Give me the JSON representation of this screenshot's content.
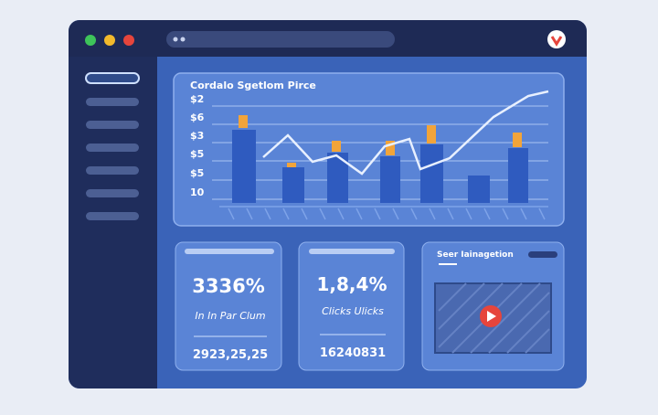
{
  "chart": {
    "title": "Cordalo Sgetlom Pirce",
    "y_labels": [
      "$2",
      "$6",
      "$3",
      "$5",
      "$5",
      "10"
    ]
  },
  "cards": [
    {
      "value": "3336%",
      "label": "In In Par Clum",
      "footer": "2923,25,25"
    },
    {
      "value": "1,8,4%",
      "label": "Clicks Ulicks",
      "footer": "16240831"
    }
  ],
  "media": {
    "title": "Seer Iainagetion"
  }
}
